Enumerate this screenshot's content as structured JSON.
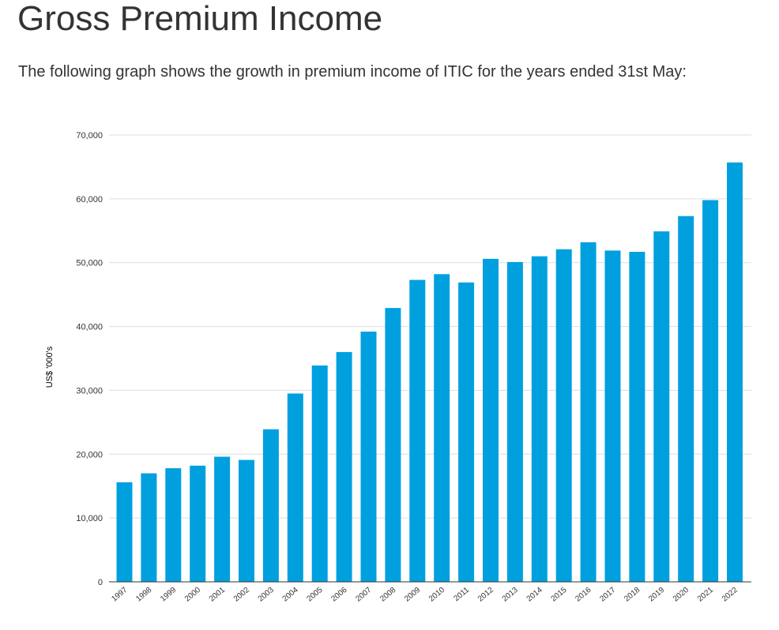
{
  "page": {
    "title": "Gross Premium Income",
    "intro": "The following graph shows the growth in premium income of ITIC for the years ended 31st May:"
  },
  "colors": {
    "bar": "#00a0df",
    "grid": "#dddddd",
    "axis": "#333333",
    "text": "#333333"
  },
  "chart_data": {
    "type": "bar",
    "ylabel": "US$ '000's",
    "ylim": [
      0,
      70000
    ],
    "yticks": [
      0,
      10000,
      20000,
      30000,
      40000,
      50000,
      60000,
      70000
    ],
    "ytick_labels": [
      "0",
      "10,000",
      "20,000",
      "30,000",
      "40,000",
      "50,000",
      "60,000",
      "70,000"
    ],
    "grid": true,
    "categories": [
      "1997",
      "1998",
      "1999",
      "2000",
      "2001",
      "2002",
      "2003",
      "2004",
      "2005",
      "2006",
      "2007",
      "2008",
      "2009",
      "2010",
      "2011",
      "2012",
      "2013",
      "2014",
      "2015",
      "2016",
      "2017",
      "2018",
      "2019",
      "2020",
      "2021",
      "2022"
    ],
    "values": [
      15600,
      17000,
      17800,
      18200,
      19600,
      19100,
      23900,
      29500,
      33900,
      36000,
      39200,
      42900,
      47300,
      48200,
      46900,
      50600,
      50100,
      51000,
      52100,
      53200,
      51900,
      51700,
      54900,
      57300,
      59800,
      65700
    ]
  }
}
